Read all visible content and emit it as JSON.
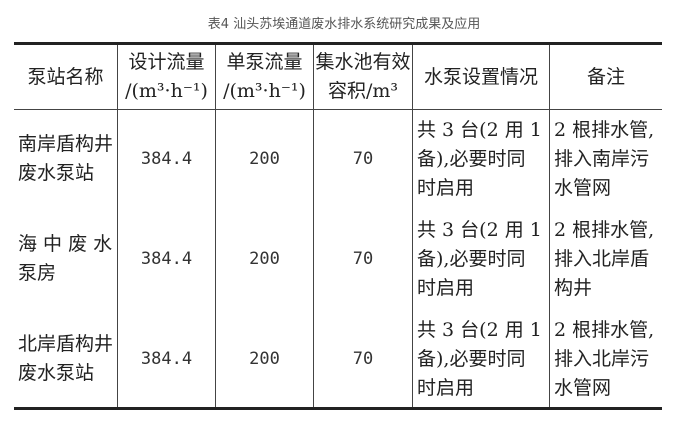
{
  "caption": "表4 汕头苏埃通道废水排水系统研究成果及应用",
  "table": {
    "headers": [
      {
        "line1": "泵站名称"
      },
      {
        "line1": "设计流量",
        "line2": "/(m³·h⁻¹)"
      },
      {
        "line1": "单泵流量",
        "line2": "/(m³·h⁻¹)"
      },
      {
        "line1": "集水池有效",
        "line2": "容积/m³"
      },
      {
        "line1": "水泵设置情况"
      },
      {
        "line1": "备注"
      }
    ],
    "rows": [
      {
        "name": "南岸盾构井\n废水泵站",
        "design_flow": "384.4",
        "pump_flow": "200",
        "volume": "70",
        "setup": "共 3 台(2 用 1\n备),必要时同\n时启用",
        "note": "2 根排水管,\n排入南岸污\n水管网"
      },
      {
        "name": "海 中 废 水\n泵房",
        "design_flow": "384.4",
        "pump_flow": "200",
        "volume": "70",
        "setup": "共 3 台(2 用 1\n备),必要时同\n时启用",
        "note": "2 根排水管,\n排入北岸盾\n构井"
      },
      {
        "name": "北岸盾构井\n废水泵站",
        "design_flow": "384.4",
        "pump_flow": "200",
        "volume": "70",
        "setup": "共 3 台(2 用 1\n备),必要时同\n时启用",
        "note": "2 根排水管,\n排入北岸污\n水管网"
      }
    ]
  }
}
